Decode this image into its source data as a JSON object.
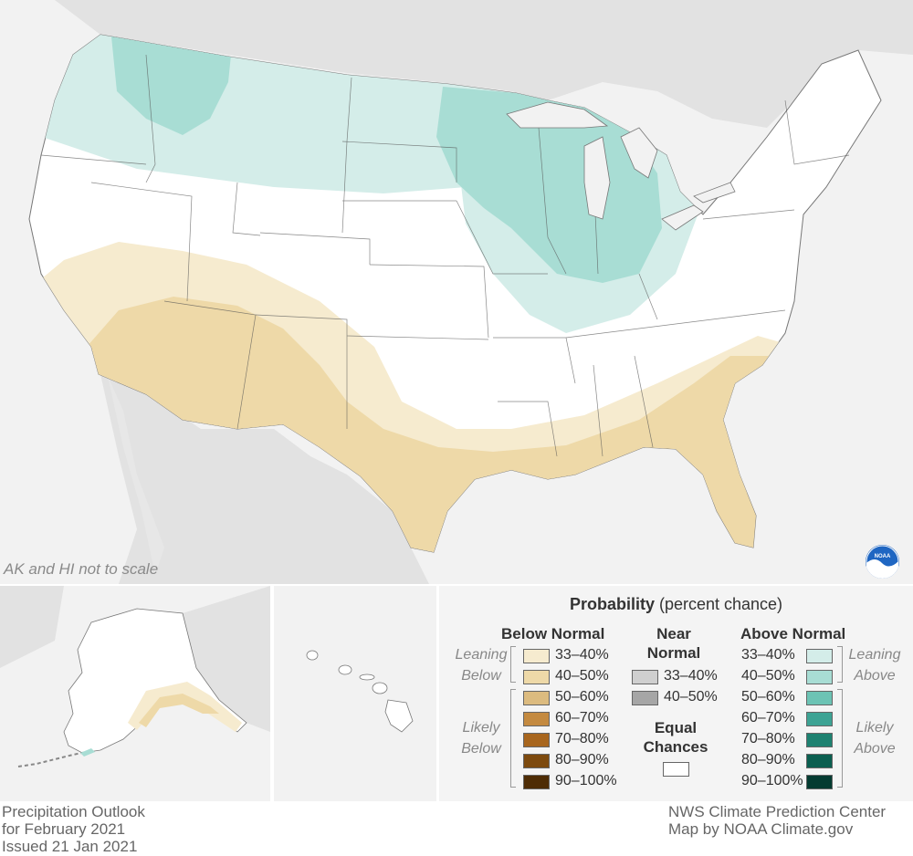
{
  "map": {
    "scale_note": "AK and HI not to scale",
    "logo": "noaa-logo"
  },
  "legend": {
    "title_bold": "Probability",
    "title_rest": " (percent chance)",
    "below": {
      "heading": "Below Normal",
      "leaning_label_1": "Leaning",
      "leaning_label_2": "Below",
      "likely_label_1": "Likely",
      "likely_label_2": "Below",
      "rows": [
        {
          "label": "33–40%",
          "color": "#f6ebcf"
        },
        {
          "label": "40–50%",
          "color": "#eed9a8"
        },
        {
          "label": "50–60%",
          "color": "#dcbb7f"
        },
        {
          "label": "60–70%",
          "color": "#c48a40"
        },
        {
          "label": "70–80%",
          "color": "#a8661e"
        },
        {
          "label": "80–90%",
          "color": "#7d4a0e"
        },
        {
          "label": "90–100%",
          "color": "#4e2c05"
        }
      ]
    },
    "near": {
      "heading_1": "Near",
      "heading_2": "Normal",
      "rows": [
        {
          "label": "33–40%",
          "color": "#cfcfcf"
        },
        {
          "label": "40–50%",
          "color": "#a6a6a6"
        }
      ],
      "equal_1": "Equal",
      "equal_2": "Chances",
      "equal_color": "#ffffff"
    },
    "above": {
      "heading": "Above Normal",
      "leaning_label_1": "Leaning",
      "leaning_label_2": "Above",
      "likely_label_1": "Likely",
      "likely_label_2": "Above",
      "rows": [
        {
          "label": "33–40%",
          "color": "#d4ede9"
        },
        {
          "label": "40–50%",
          "color": "#a8ddd4"
        },
        {
          "label": "50–60%",
          "color": "#6cc3b4"
        },
        {
          "label": "60–70%",
          "color": "#3da394"
        },
        {
          "label": "70–80%",
          "color": "#1e8271"
        },
        {
          "label": "80–90%",
          "color": "#0b5f50"
        },
        {
          "label": "90–100%",
          "color": "#043b31"
        }
      ]
    }
  },
  "footer": {
    "left_1": "Precipitation Outlook",
    "left_2": "for February 2021",
    "left_3": "Issued 21 Jan 2021",
    "right_1": "NWS Climate Prediction Center",
    "right_2": "Map by NOAA Climate.gov"
  }
}
